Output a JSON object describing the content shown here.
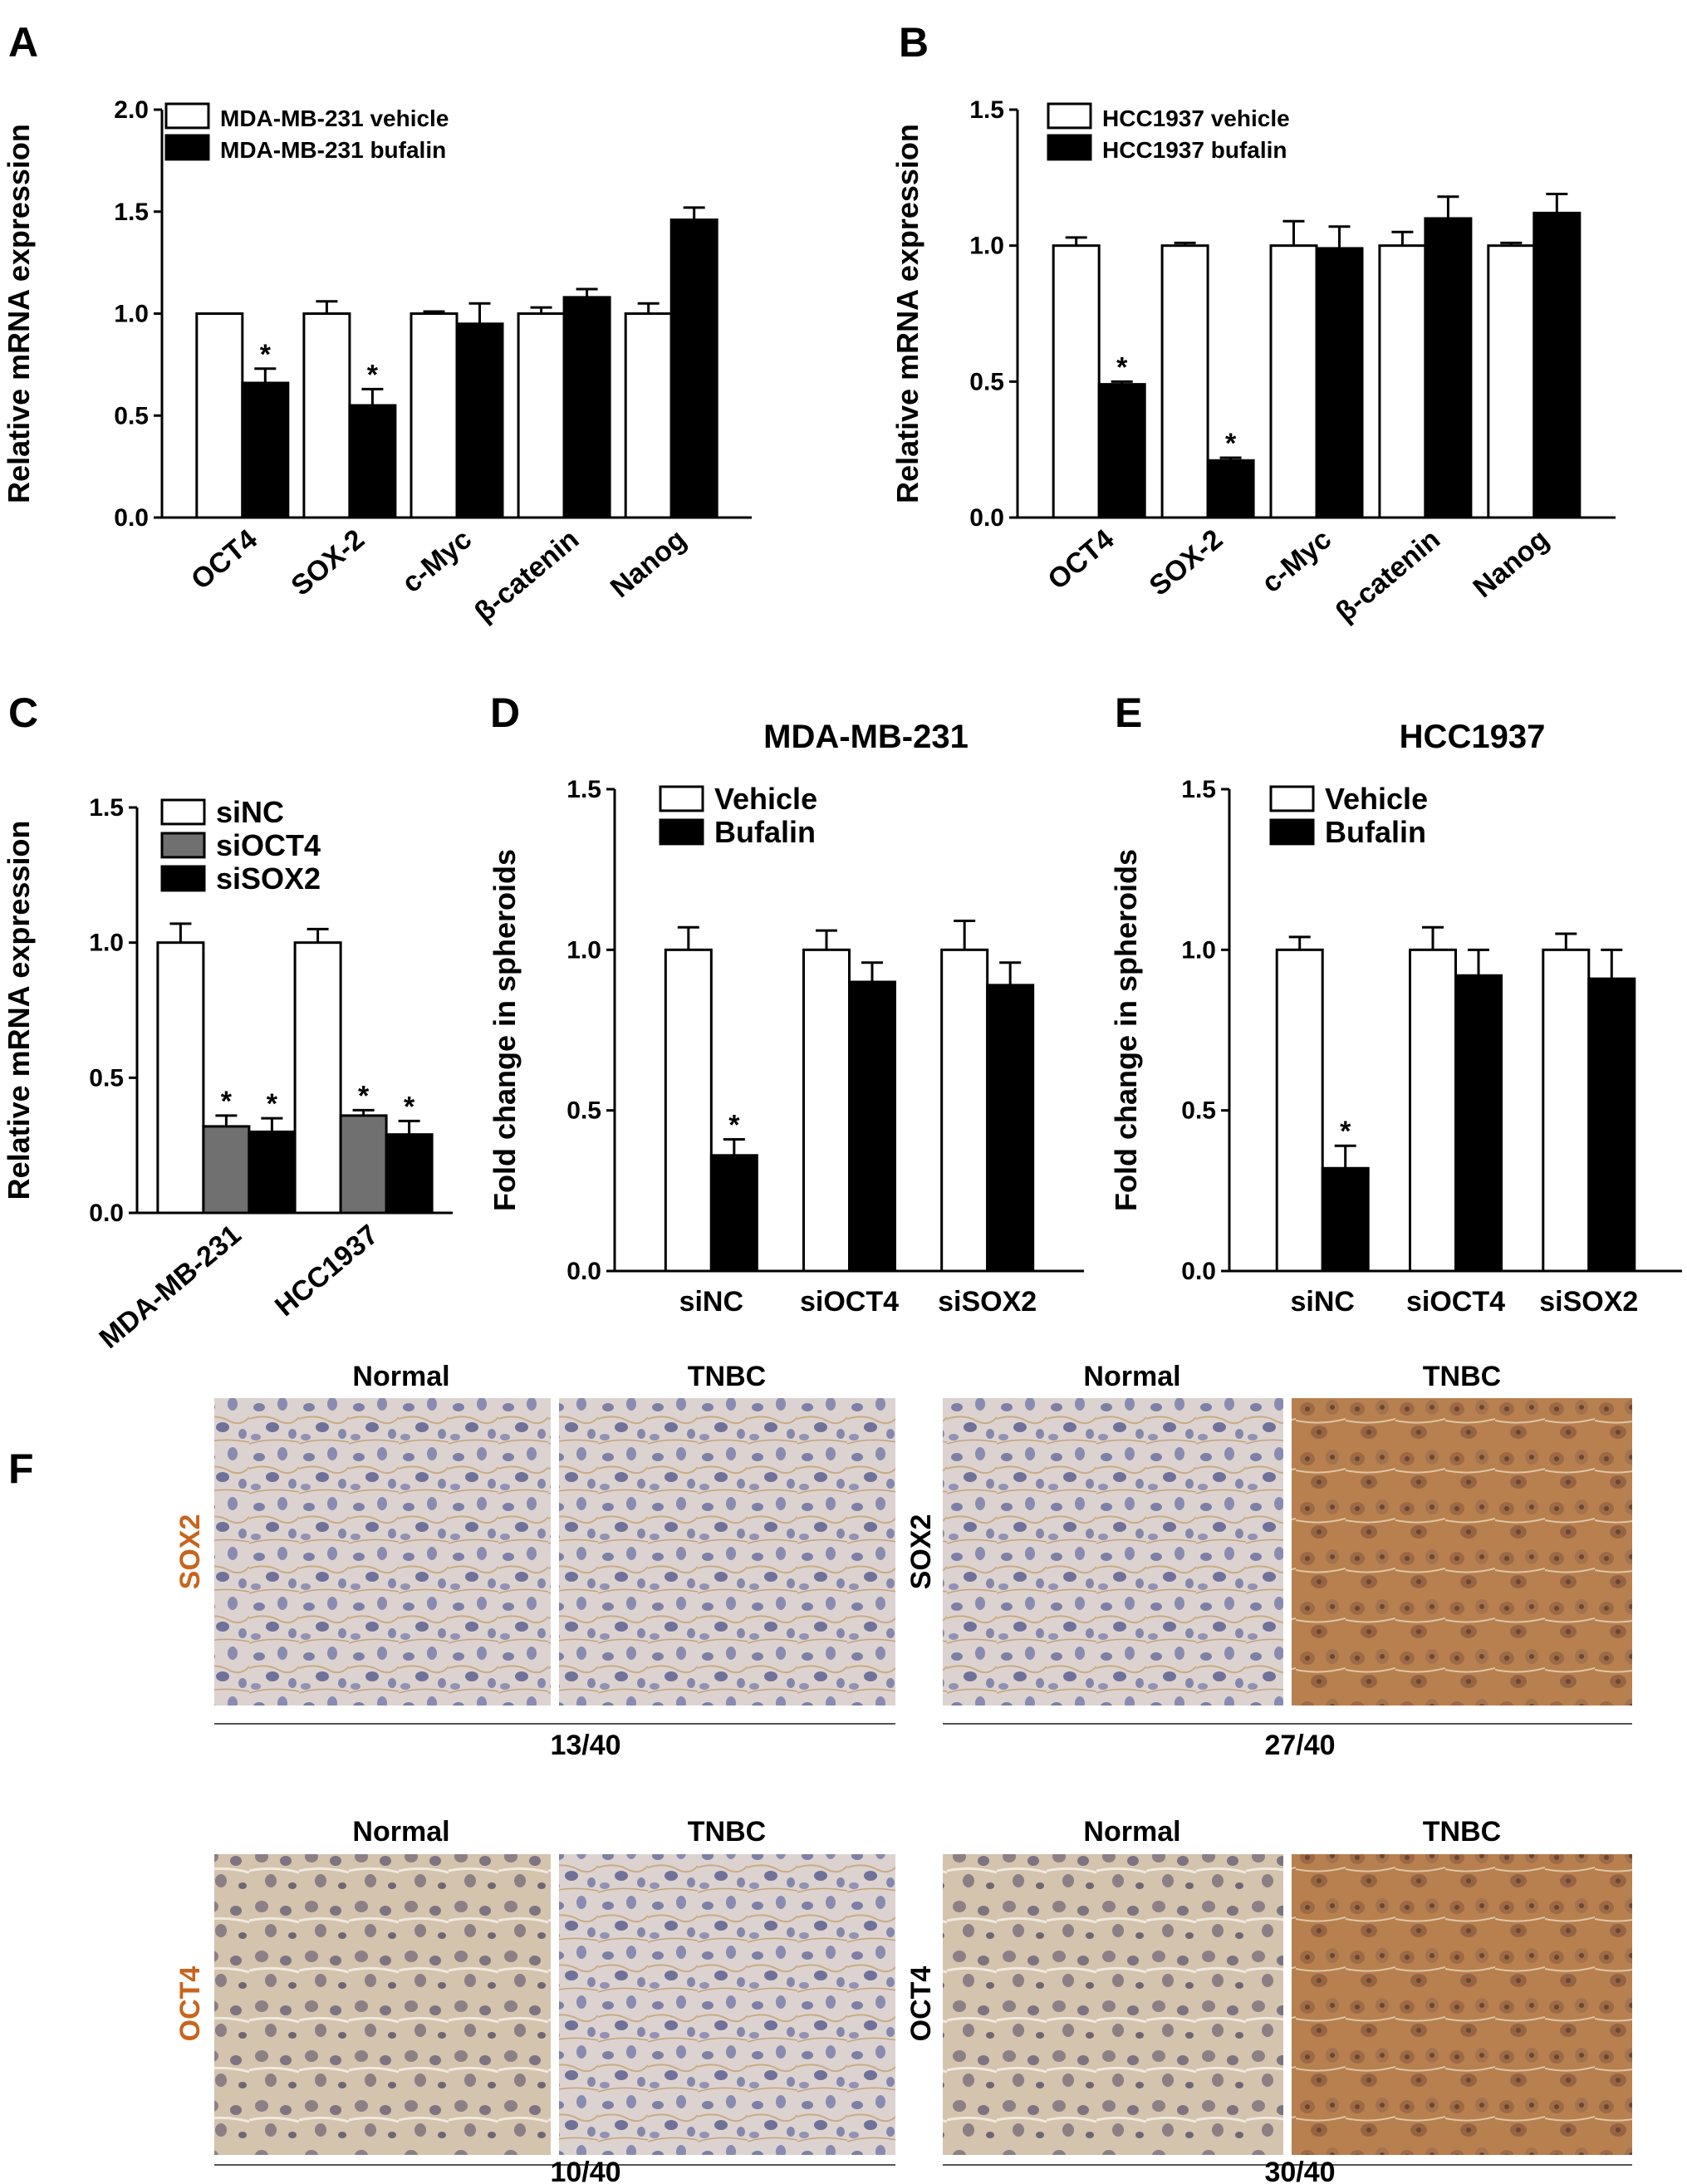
{
  "panel_labels": [
    "A",
    "B",
    "C",
    "D",
    "E",
    "F"
  ],
  "colors": {
    "vehicle": "#ffffff",
    "treated": "#000000",
    "grey": "#707070",
    "stroke": "#000000",
    "accent_orange": "#c8641e"
  },
  "chart_data": [
    {
      "id": "A",
      "type": "bar",
      "title": "",
      "ylabel": "Relative mRNA expression",
      "xlabel": "",
      "ylim": [
        0,
        2.0
      ],
      "yticks": [
        "0.0",
        "0.5",
        "1.0",
        "1.5",
        "2.0"
      ],
      "categories": [
        "OCT4",
        "SOX-2",
        "c-Myc",
        "β-catenin",
        "Nanog"
      ],
      "series": [
        {
          "name": "MDA-MB-231 vehicle",
          "fill": "white",
          "values": [
            1.0,
            1.0,
            1.0,
            1.0,
            1.0
          ],
          "errors": [
            0.0,
            0.06,
            0.01,
            0.03,
            0.05
          ]
        },
        {
          "name": "MDA-MB-231 bufalin",
          "fill": "black",
          "values": [
            0.66,
            0.55,
            0.95,
            1.08,
            1.46
          ],
          "errors": [
            0.07,
            0.08,
            0.1,
            0.04,
            0.06
          ]
        }
      ],
      "significance": [
        {
          "category": 0,
          "series": 1,
          "label": "*"
        },
        {
          "category": 1,
          "series": 1,
          "label": "*"
        }
      ]
    },
    {
      "id": "B",
      "type": "bar",
      "title": "",
      "ylabel": "Relative mRNA expression",
      "xlabel": "",
      "ylim": [
        0,
        1.5
      ],
      "yticks": [
        "0.0",
        "0.5",
        "1.0",
        "1.5"
      ],
      "categories": [
        "OCT4",
        "SOX-2",
        "c-Myc",
        "β-catenin",
        "Nanog"
      ],
      "series": [
        {
          "name": "HCC1937 vehicle",
          "fill": "white",
          "values": [
            1.0,
            1.0,
            1.0,
            1.0,
            1.0
          ],
          "errors": [
            0.03,
            0.01,
            0.09,
            0.05,
            0.01
          ]
        },
        {
          "name": "HCC1937 bufalin",
          "fill": "black",
          "values": [
            0.49,
            0.21,
            0.99,
            1.1,
            1.12
          ],
          "errors": [
            0.01,
            0.01,
            0.08,
            0.08,
            0.07
          ]
        }
      ],
      "significance": [
        {
          "category": 0,
          "series": 1,
          "label": "*"
        },
        {
          "category": 1,
          "series": 1,
          "label": "*"
        }
      ]
    },
    {
      "id": "C",
      "type": "bar",
      "title": "",
      "ylabel": "Relative mRNA expression",
      "xlabel": "",
      "ylim": [
        0,
        1.5
      ],
      "yticks": [
        "0.0",
        "0.5",
        "1.0",
        "1.5"
      ],
      "categories": [
        "MDA-MB-231",
        "HCC1937"
      ],
      "series": [
        {
          "name": "siNC",
          "fill": "white",
          "values": [
            1.0,
            1.0
          ],
          "errors": [
            0.07,
            0.05
          ]
        },
        {
          "name": "siOCT4",
          "fill": "grey",
          "values": [
            0.32,
            0.36
          ],
          "errors": [
            0.04,
            0.02
          ]
        },
        {
          "name": "siSOX2",
          "fill": "black",
          "values": [
            0.3,
            0.29
          ],
          "errors": [
            0.05,
            0.05
          ]
        }
      ],
      "significance": [
        {
          "category": 0,
          "series": 1,
          "label": "*"
        },
        {
          "category": 0,
          "series": 2,
          "label": "*"
        },
        {
          "category": 1,
          "series": 1,
          "label": "*"
        },
        {
          "category": 1,
          "series": 2,
          "label": "*"
        }
      ]
    },
    {
      "id": "D",
      "type": "bar",
      "title": "MDA-MB-231",
      "ylabel": "Fold change in spheroids",
      "xlabel": "",
      "ylim": [
        0,
        1.5
      ],
      "yticks": [
        "0.0",
        "0.5",
        "1.0",
        "1.5"
      ],
      "categories": [
        "siNC",
        "siOCT4",
        "siSOX2"
      ],
      "series": [
        {
          "name": "Vehicle",
          "fill": "white",
          "values": [
            1.0,
            1.0,
            1.0
          ],
          "errors": [
            0.07,
            0.06,
            0.09
          ]
        },
        {
          "name": "Bufalin",
          "fill": "black",
          "values": [
            0.36,
            0.9,
            0.89
          ],
          "errors": [
            0.05,
            0.06,
            0.07
          ]
        }
      ],
      "significance": [
        {
          "category": 0,
          "series": 1,
          "label": "*"
        }
      ]
    },
    {
      "id": "E",
      "type": "bar",
      "title": "HCC1937",
      "ylabel": "Fold change in spheroids",
      "xlabel": "",
      "ylim": [
        0,
        1.5
      ],
      "yticks": [
        "0.0",
        "0.5",
        "1.0",
        "1.5"
      ],
      "categories": [
        "siNC",
        "siOCT4",
        "siSOX2"
      ],
      "series": [
        {
          "name": "Vehicle",
          "fill": "white",
          "values": [
            1.0,
            1.0,
            1.0
          ],
          "errors": [
            0.04,
            0.07,
            0.05
          ]
        },
        {
          "name": "Bufalin",
          "fill": "black",
          "values": [
            0.32,
            0.92,
            0.91
          ],
          "errors": [
            0.07,
            0.08,
            0.09
          ]
        }
      ],
      "significance": [
        {
          "category": 0,
          "series": 1,
          "label": "*"
        }
      ]
    }
  ],
  "ihc": {
    "column_headers": [
      "Normal",
      "TNBC",
      "Normal",
      "TNBC"
    ],
    "rows": [
      {
        "left_label": "SOX2",
        "right_label": "SOX2",
        "left_label_color": "#c8641e",
        "ratios": [
          "13/40",
          "27/40"
        ],
        "images": [
          "normal-light",
          "normal-light",
          "normal-light",
          "tnbc-strong"
        ]
      },
      {
        "left_label": "OCT4",
        "right_label": "OCT4",
        "left_label_color": "#c8641e",
        "ratios": [
          "10/40",
          "30/40"
        ],
        "images": [
          "normal-medium",
          "normal-light",
          "normal-medium",
          "tnbc-strong"
        ]
      }
    ]
  }
}
